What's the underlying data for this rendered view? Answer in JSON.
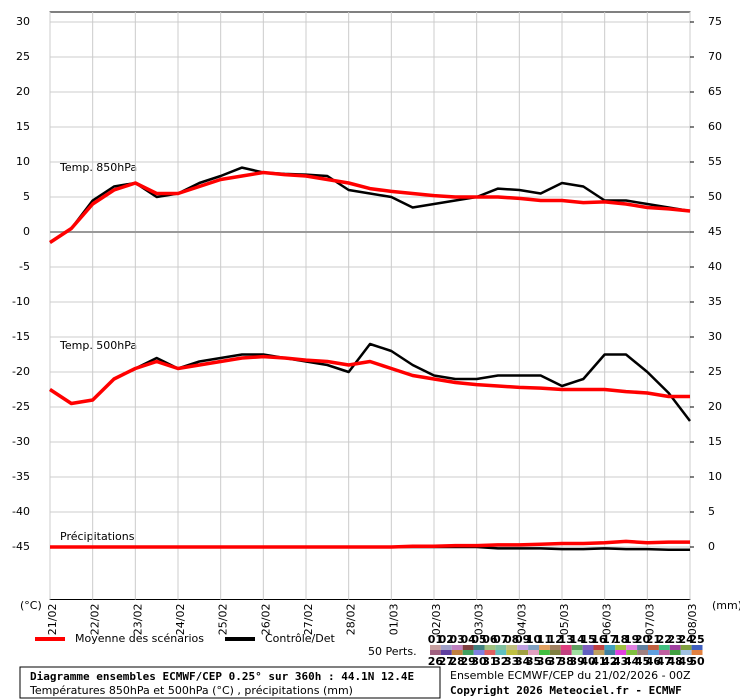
{
  "chart_data": {
    "type": "line",
    "panel_labels": [
      "Temp. 850hPa",
      "Temp. 500hPa",
      "Précipitations"
    ],
    "y_unit": "(°C)",
    "y2_unit": "(mm)",
    "x": [
      0,
      12,
      24,
      36,
      48,
      60,
      72,
      84,
      96,
      108,
      120,
      132,
      144,
      156,
      168,
      180,
      192,
      204,
      216,
      228,
      240,
      252,
      264,
      276,
      288,
      300,
      312,
      324,
      336,
      348,
      360
    ],
    "xlim": [
      0,
      360
    ],
    "xticks": [
      {
        "value": 0,
        "label": "21/02"
      },
      {
        "value": 24,
        "label": "22/02"
      },
      {
        "value": 48,
        "label": "23/02"
      },
      {
        "value": 72,
        "label": "24/02"
      },
      {
        "value": 96,
        "label": "25/02"
      },
      {
        "value": 120,
        "label": "26/02"
      },
      {
        "value": 144,
        "label": "27/02"
      },
      {
        "value": 168,
        "label": "28/02"
      },
      {
        "value": 192,
        "label": "01/03"
      },
      {
        "value": 216,
        "label": "02/03"
      },
      {
        "value": 240,
        "label": "03/03"
      },
      {
        "value": 264,
        "label": "04/03"
      },
      {
        "value": 288,
        "label": "05/03"
      },
      {
        "value": 312,
        "label": "06/03"
      },
      {
        "value": 336,
        "label": "07/03"
      },
      {
        "value": 360,
        "label": "08/03"
      }
    ],
    "ylim": [
      -52.5,
      30
    ],
    "yticks": [
      30,
      25,
      20,
      15,
      10,
      5,
      0,
      -5,
      -10,
      -15,
      -20,
      -25,
      -30,
      -35,
      -40,
      -45
    ],
    "y2lim": [
      -7.5,
      75
    ],
    "y2ticks": [
      75,
      70,
      65,
      60,
      55,
      50,
      45,
      40,
      35,
      30,
      25,
      20,
      15,
      10,
      5,
      0
    ],
    "grid": true,
    "legend": [
      {
        "name": "Moyenne des scénarios",
        "color": "#ff0000"
      },
      {
        "name": "Contrôle/Det",
        "color": "#000000"
      }
    ],
    "series": [
      {
        "values": [
          -1.5,
          0.5,
          4,
          6,
          7,
          5.5,
          5.5,
          6.5,
          7.5,
          8,
          8.5,
          8.2,
          8,
          7.5,
          7,
          6.2,
          5.8,
          5.5,
          5.2,
          5,
          5,
          5,
          4.8,
          4.5,
          4.5,
          4.2,
          4.3,
          4,
          3.5,
          3.3,
          3
        ]
      },
      {
        "values": [
          -1.5,
          0.5,
          4.5,
          6.5,
          7,
          5,
          5.5,
          7,
          8,
          9.2,
          8.5,
          8.3,
          8.2,
          8,
          6,
          5.5,
          5,
          3.5,
          4,
          4.5,
          5,
          6.2,
          6,
          5.5,
          7,
          6.5,
          4.5,
          4.5,
          4,
          3.5,
          3
        ]
      },
      {
        "values": [
          -22.5,
          -24.5,
          -24,
          -21,
          -19.5,
          -18.5,
          -19.5,
          -19,
          -18.5,
          -18,
          -17.8,
          -18,
          -18.3,
          -18.5,
          -19,
          -18.5,
          -19.5,
          -20.5,
          -21,
          -21.5,
          -21.8,
          -22,
          -22.2,
          -22.3,
          -22.5,
          -22.5,
          -22.5,
          -22.8,
          -23,
          -23.5,
          -23.5
        ]
      },
      {
        "values": [
          -22.5,
          -24.5,
          -24,
          -21,
          -19.5,
          -18,
          -19.5,
          -18.5,
          -18,
          -17.5,
          -17.5,
          -18,
          -18.5,
          -19,
          -20,
          -16,
          -17,
          -19,
          -20.5,
          -21,
          -21,
          -20.5,
          -20.5,
          -20.5,
          -22,
          -21,
          -17.5,
          -17.5,
          -20,
          -23,
          -27
        ]
      },
      {
        "axis": "y2",
        "values": [
          0,
          0,
          0,
          0,
          0,
          0,
          0,
          0,
          0,
          0,
          0,
          0,
          0,
          0,
          0,
          0,
          0,
          0.1,
          0.1,
          0.2,
          0.2,
          0.3,
          0.3,
          0.4,
          0.5,
          0.5,
          0.6,
          0.8,
          0.6,
          0.7,
          0.7
        ]
      },
      {
        "axis": "y2",
        "values": [
          0,
          0,
          0,
          0,
          0,
          0,
          0,
          0,
          0,
          0,
          0,
          0,
          0,
          0,
          0,
          0,
          0,
          0,
          0,
          0,
          0,
          -0.2,
          -0.2,
          -0.2,
          -0.3,
          -0.3,
          -0.2,
          -0.3,
          -0.3,
          -0.4,
          -0.4
        ]
      }
    ],
    "perts_label": "50 Perts.",
    "perts": [
      "01",
      "02",
      "03",
      "04",
      "05",
      "06",
      "07",
      "08",
      "09",
      "10",
      "11",
      "12",
      "13",
      "14",
      "15",
      "16",
      "17",
      "18",
      "19",
      "20",
      "21",
      "22",
      "23",
      "24",
      "25",
      "26",
      "27",
      "28",
      "29",
      "30",
      "31",
      "32",
      "33",
      "34",
      "35",
      "36",
      "37",
      "38",
      "39",
      "40",
      "41",
      "42",
      "43",
      "44",
      "45",
      "46",
      "47",
      "48",
      "49",
      "50"
    ],
    "pert_colors": [
      "#c8a0a0",
      "#a0a0c8",
      "#c080c0",
      "#804040",
      "#408080",
      "#a0c080",
      "#80c0a0",
      "#c0c080",
      "#c0a0e0",
      "#80a0c0",
      "#e0a060",
      "#a08060",
      "#e04080",
      "#60a060",
      "#8060c0",
      "#c04040",
      "#40a0c0",
      "#a0c040",
      "#e080e0",
      "#6080a0",
      "#c06040",
      "#40c080",
      "#a040a0",
      "#80a040",
      "#4060c0",
      "#a06080",
      "#6040a0",
      "#c08040",
      "#40a060",
      "#8080e0",
      "#e06060",
      "#60c0c0",
      "#c0c040",
      "#a0a040",
      "#e0a0c0",
      "#40c040",
      "#808040",
      "#c04080",
      "#a0e0a0",
      "#6060c0",
      "#c0a060",
      "#4080a0",
      "#e040e0",
      "#80c040",
      "#a08080",
      "#60a0e0",
      "#c060a0",
      "#40a040",
      "#a0c0e0",
      "#e08040"
    ],
    "footer": [
      "Diagramme ensembles ECMWF/CEP 0.25° sur 360h : 44.1N 12.4E",
      "Températures 850hPa et 500hPa (°C) , précipitations (mm)"
    ],
    "info": [
      "Ensemble ECMWF/CEP du 21/02/2026 - 00Z",
      "Copyright 2026 Meteociel.fr - ECMWF"
    ]
  }
}
